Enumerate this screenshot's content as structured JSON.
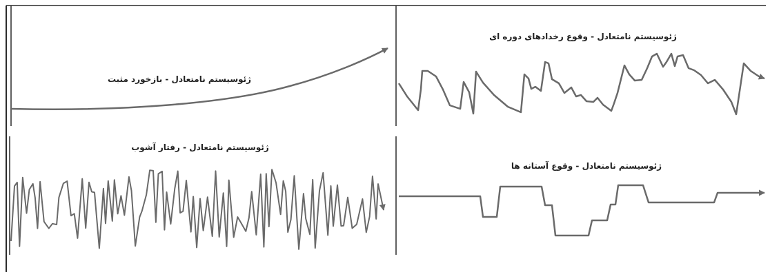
{
  "colors": {
    "ink": "#2b2b2b",
    "signal": "#6a6a6a",
    "background": "#ffffff"
  },
  "panels": [
    {
      "id": "positive-feedback",
      "title": "ژئوسیستم نامتعادل - بازخورد مثبت",
      "curve": "exponential-growth-arrow"
    },
    {
      "id": "periodic-events",
      "title": "ژئوسیستم نامتعادل - وقوع رخدادهای دوره ای",
      "curve": "sawtooth-decay-arrow"
    },
    {
      "id": "chaotic-behavior",
      "title": "ژئوسیستم نامتعادل - رفتار آشوب",
      "curve": "chaotic-oscillation-arrow"
    },
    {
      "id": "threshold-events",
      "title": "ژئوسیستم نامتعادل - وقوع آستانه ها",
      "curve": "step-threshold-arrow"
    }
  ]
}
